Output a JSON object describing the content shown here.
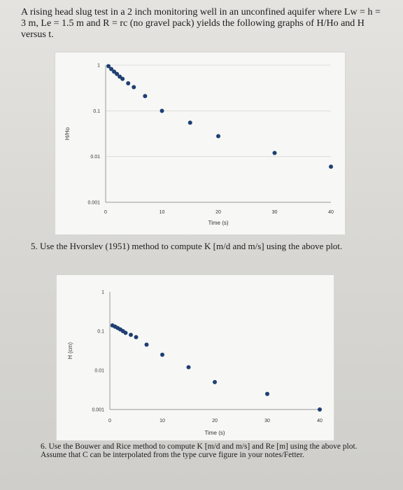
{
  "text": {
    "intro": "A rising head slug test in a 2 inch monitoring well in an unconfined aquifer where Lw = h = 3 m, Le = 1.5 m and R = rc (no gravel pack) yields the following graphs of H/Ho and H versus t.",
    "q5": "5. Use the Hvorslev (1951) method to compute K [m/d and m/s] using the above plot.",
    "q6": "6. Use the Bouwer and Rice method to compute K [m/d and m/s] and Re [m] using the above plot. Assume that C can be interpolated from the type curve figure in your notes/Fetter."
  },
  "chart_data": [
    {
      "type": "scatter",
      "title": "",
      "xlabel": "Time (s)",
      "ylabel": "H/Ho",
      "xlim": [
        0,
        40
      ],
      "ylim": [
        0.001,
        1
      ],
      "yscale": "log",
      "x_ticks": [
        "0",
        "10",
        "20",
        "30",
        "40"
      ],
      "y_ticks": [
        "1",
        "0.1",
        "0.01",
        "0.001"
      ],
      "grid": "horizontal",
      "legend": "none",
      "marker_color": "#1f3f73",
      "series": [
        {
          "x": [
            0.5,
            1.0,
            1.5,
            2.0,
            2.5,
            3.0,
            4.0,
            5.0,
            7.0,
            10.0,
            15.0,
            20.0,
            30.0,
            40.0
          ],
          "y": [
            0.95,
            0.82,
            0.72,
            0.64,
            0.56,
            0.5,
            0.4,
            0.33,
            0.21,
            0.1,
            0.055,
            0.028,
            0.012,
            0.006
          ]
        }
      ]
    },
    {
      "type": "scatter",
      "title": "",
      "xlabel": "Time (s)",
      "ylabel": "H (cm)",
      "xlim": [
        0,
        40
      ],
      "ylim": [
        0.001,
        1
      ],
      "yscale": "log",
      "x_ticks": [
        "0",
        "10",
        "20",
        "30",
        "40"
      ],
      "y_ticks": [
        "1",
        "0.1",
        "0.01",
        "0.001"
      ],
      "grid": "none",
      "legend": "none",
      "marker_color": "#1f3f73",
      "series": [
        {
          "x": [
            0.5,
            1.0,
            1.5,
            2.0,
            2.5,
            3.0,
            4.0,
            5.0,
            7.0,
            10.0,
            15.0,
            20.0,
            30.0,
            40.0
          ],
          "y": [
            0.14,
            0.13,
            0.12,
            0.11,
            0.1,
            0.09,
            0.08,
            0.07,
            0.045,
            0.025,
            0.012,
            0.005,
            0.0025,
            0.001
          ]
        }
      ]
    }
  ]
}
